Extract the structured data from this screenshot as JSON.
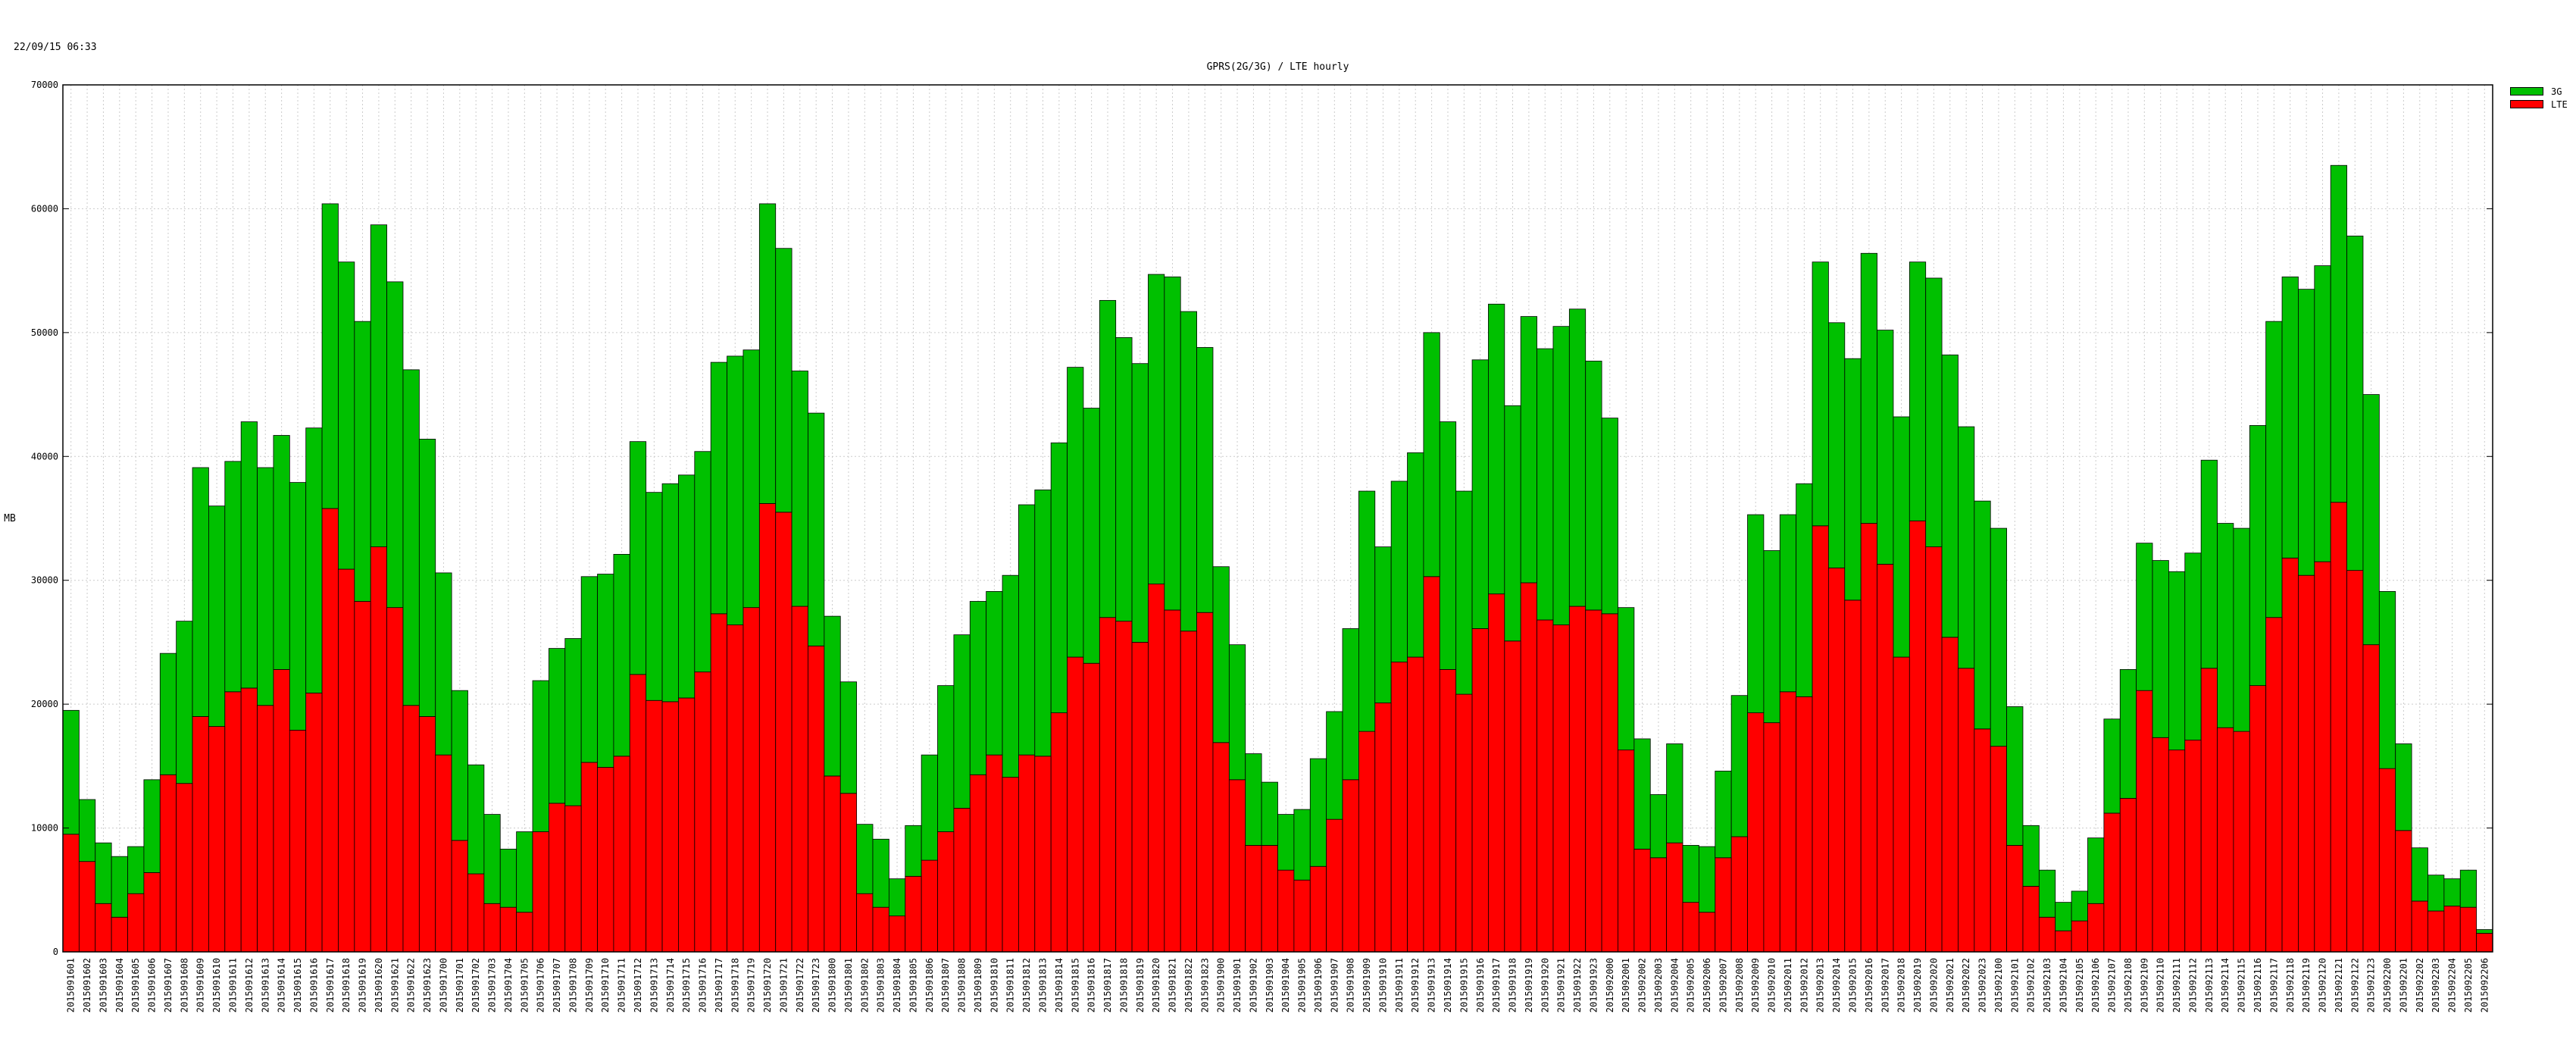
{
  "header": {
    "timestamp": "22/09/15 06:33"
  },
  "colors": {
    "3g": "#00c000",
    "lte": "#ff0000",
    "border": "#000000",
    "grid": "#cccccc"
  },
  "chart_data": {
    "type": "bar",
    "stacked": true,
    "title": "GPRS(2G/3G) / LTE hourly",
    "ylabel": "MB",
    "xlabel": "",
    "ylim": [
      0,
      70000
    ],
    "yticks": [
      0,
      10000,
      20000,
      30000,
      40000,
      50000,
      60000,
      70000
    ],
    "grid": true,
    "legend_position": "outside-top-right",
    "categories": [
      "2015091601",
      "2015091602",
      "2015091603",
      "2015091604",
      "2015091605",
      "2015091606",
      "2015091607",
      "2015091608",
      "2015091609",
      "2015091610",
      "2015091611",
      "2015091612",
      "2015091613",
      "2015091614",
      "2015091615",
      "2015091616",
      "2015091617",
      "2015091618",
      "2015091619",
      "2015091620",
      "2015091621",
      "2015091622",
      "2015091623",
      "2015091700",
      "2015091701",
      "2015091702",
      "2015091703",
      "2015091704",
      "2015091705",
      "2015091706",
      "2015091707",
      "2015091708",
      "2015091709",
      "2015091710",
      "2015091711",
      "2015091712",
      "2015091713",
      "2015091714",
      "2015091715",
      "2015091716",
      "2015091717",
      "2015091718",
      "2015091719",
      "2015091720",
      "2015091721",
      "2015091722",
      "2015091723",
      "2015091800",
      "2015091801",
      "2015091802",
      "2015091803",
      "2015091804",
      "2015091805",
      "2015091806",
      "2015091807",
      "2015091808",
      "2015091809",
      "2015091810",
      "2015091811",
      "2015091812",
      "2015091813",
      "2015091814",
      "2015091815",
      "2015091816",
      "2015091817",
      "2015091818",
      "2015091819",
      "2015091820",
      "2015091821",
      "2015091822",
      "2015091823",
      "2015091900",
      "2015091901",
      "2015091902",
      "2015091903",
      "2015091904",
      "2015091905",
      "2015091906",
      "2015091907",
      "2015091908",
      "2015091909",
      "2015091910",
      "2015091911",
      "2015091912",
      "2015091913",
      "2015091914",
      "2015091915",
      "2015091916",
      "2015091917",
      "2015091918",
      "2015091919",
      "2015091920",
      "2015091921",
      "2015091922",
      "2015091923",
      "2015092000",
      "2015092001",
      "2015092002",
      "2015092003",
      "2015092004",
      "2015092005",
      "2015092006",
      "2015092007",
      "2015092008",
      "2015092009",
      "2015092010",
      "2015092011",
      "2015092012",
      "2015092013",
      "2015092014",
      "2015092015",
      "2015092016",
      "2015092017",
      "2015092018",
      "2015092019",
      "2015092020",
      "2015092021",
      "2015092022",
      "2015092023",
      "2015092100",
      "2015092101",
      "2015092102",
      "2015092103",
      "2015092104",
      "2015092105",
      "2015092106",
      "2015092107",
      "2015092108",
      "2015092109",
      "2015092110",
      "2015092111",
      "2015092112",
      "2015092113",
      "2015092114",
      "2015092115",
      "2015092116",
      "2015092117",
      "2015092118",
      "2015092119",
      "2015092120",
      "2015092121",
      "2015092122",
      "2015092123",
      "2015092200",
      "2015092201",
      "2015092202",
      "2015092203",
      "2015092204",
      "2015092205",
      "2015092206"
    ],
    "series": [
      {
        "name": "LTE",
        "color": "#ff0000",
        "values": [
          9500,
          7300,
          3900,
          2800,
          4700,
          6400,
          14300,
          13600,
          19000,
          18200,
          21000,
          21300,
          19900,
          22800,
          17900,
          20900,
          35800,
          30900,
          28300,
          32700,
          27800,
          19900,
          19000,
          15900,
          9000,
          6300,
          3900,
          3600,
          3200,
          9700,
          12000,
          11800,
          15300,
          14900,
          15800,
          22400,
          20300,
          20200,
          20500,
          22600,
          27300,
          26400,
          27800,
          36200,
          35500,
          27900,
          24700,
          14200,
          12800,
          4700,
          3600,
          2900,
          6100,
          7400,
          9700,
          11600,
          14300,
          15900,
          14100,
          15900,
          15800,
          19300,
          23800,
          23300,
          27000,
          26700,
          25000,
          29700,
          27600,
          25900,
          27400,
          16900,
          13900,
          8600,
          8600,
          6600,
          5800,
          6900,
          10700,
          13900,
          17800,
          20100,
          23400,
          23800,
          30300,
          22800,
          20800,
          26100,
          28900,
          25100,
          29800,
          26800,
          26400,
          27900,
          27600,
          27300,
          16300,
          8300,
          7600,
          8800,
          4000,
          3200,
          7600,
          9300,
          19300,
          18500,
          21000,
          20600,
          34400,
          31000,
          28400,
          34600,
          31300,
          23800,
          34800,
          32700,
          25400,
          22900,
          18000,
          16600,
          8600,
          5300,
          2800,
          1700,
          2500,
          3900,
          11200,
          12400,
          21100,
          17300,
          16300,
          17100,
          22900,
          18100,
          17800,
          21500,
          27000,
          31800,
          30400,
          31500,
          36300,
          30800,
          24800,
          14800,
          9800,
          4100,
          3300,
          3700,
          3600,
          1500
        ]
      },
      {
        "name": "3G",
        "color": "#00c000",
        "values": [
          10000,
          5000,
          4900,
          4900,
          3800,
          7500,
          9800,
          13100,
          20100,
          17800,
          18600,
          21500,
          19200,
          18900,
          20000,
          21400,
          24600,
          24800,
          22600,
          26000,
          26300,
          27100,
          22400,
          14700,
          12100,
          8800,
          7200,
          4700,
          6500,
          12200,
          12500,
          13500,
          15000,
          15600,
          16300,
          18800,
          16800,
          17600,
          18000,
          17800,
          20300,
          21700,
          20800,
          24200,
          21300,
          19000,
          18800,
          12900,
          9000,
          5600,
          5500,
          3000,
          4100,
          8500,
          11800,
          14000,
          14000,
          13200,
          16300,
          20200,
          21500,
          21800,
          23400,
          20600,
          25600,
          22900,
          22500,
          25000,
          26900,
          25800,
          21400,
          14200,
          10900,
          7400,
          5100,
          4500,
          5700,
          8700,
          8700,
          12200,
          19400,
          12600,
          14600,
          16500,
          19700,
          20000,
          16400,
          21700,
          23400,
          19000,
          21500,
          21900,
          24100,
          24000,
          20100,
          15800,
          11500,
          8900,
          5100,
          8000,
          4600,
          5300,
          7000,
          11400,
          16000,
          13900,
          14300,
          17200,
          21300,
          19800,
          19500,
          21800,
          18900,
          19400,
          20900,
          21700,
          22800,
          19500,
          18400,
          17600,
          11200,
          4900,
          3800,
          2300,
          2400,
          5300,
          7600,
          10400,
          11900,
          14300,
          14400,
          15100,
          16800,
          16500,
          16400,
          21000,
          23900,
          22700,
          23100,
          23900,
          27200,
          27000,
          20200,
          14300,
          7000,
          4300,
          2900,
          2200,
          3000,
          300
        ]
      }
    ]
  }
}
